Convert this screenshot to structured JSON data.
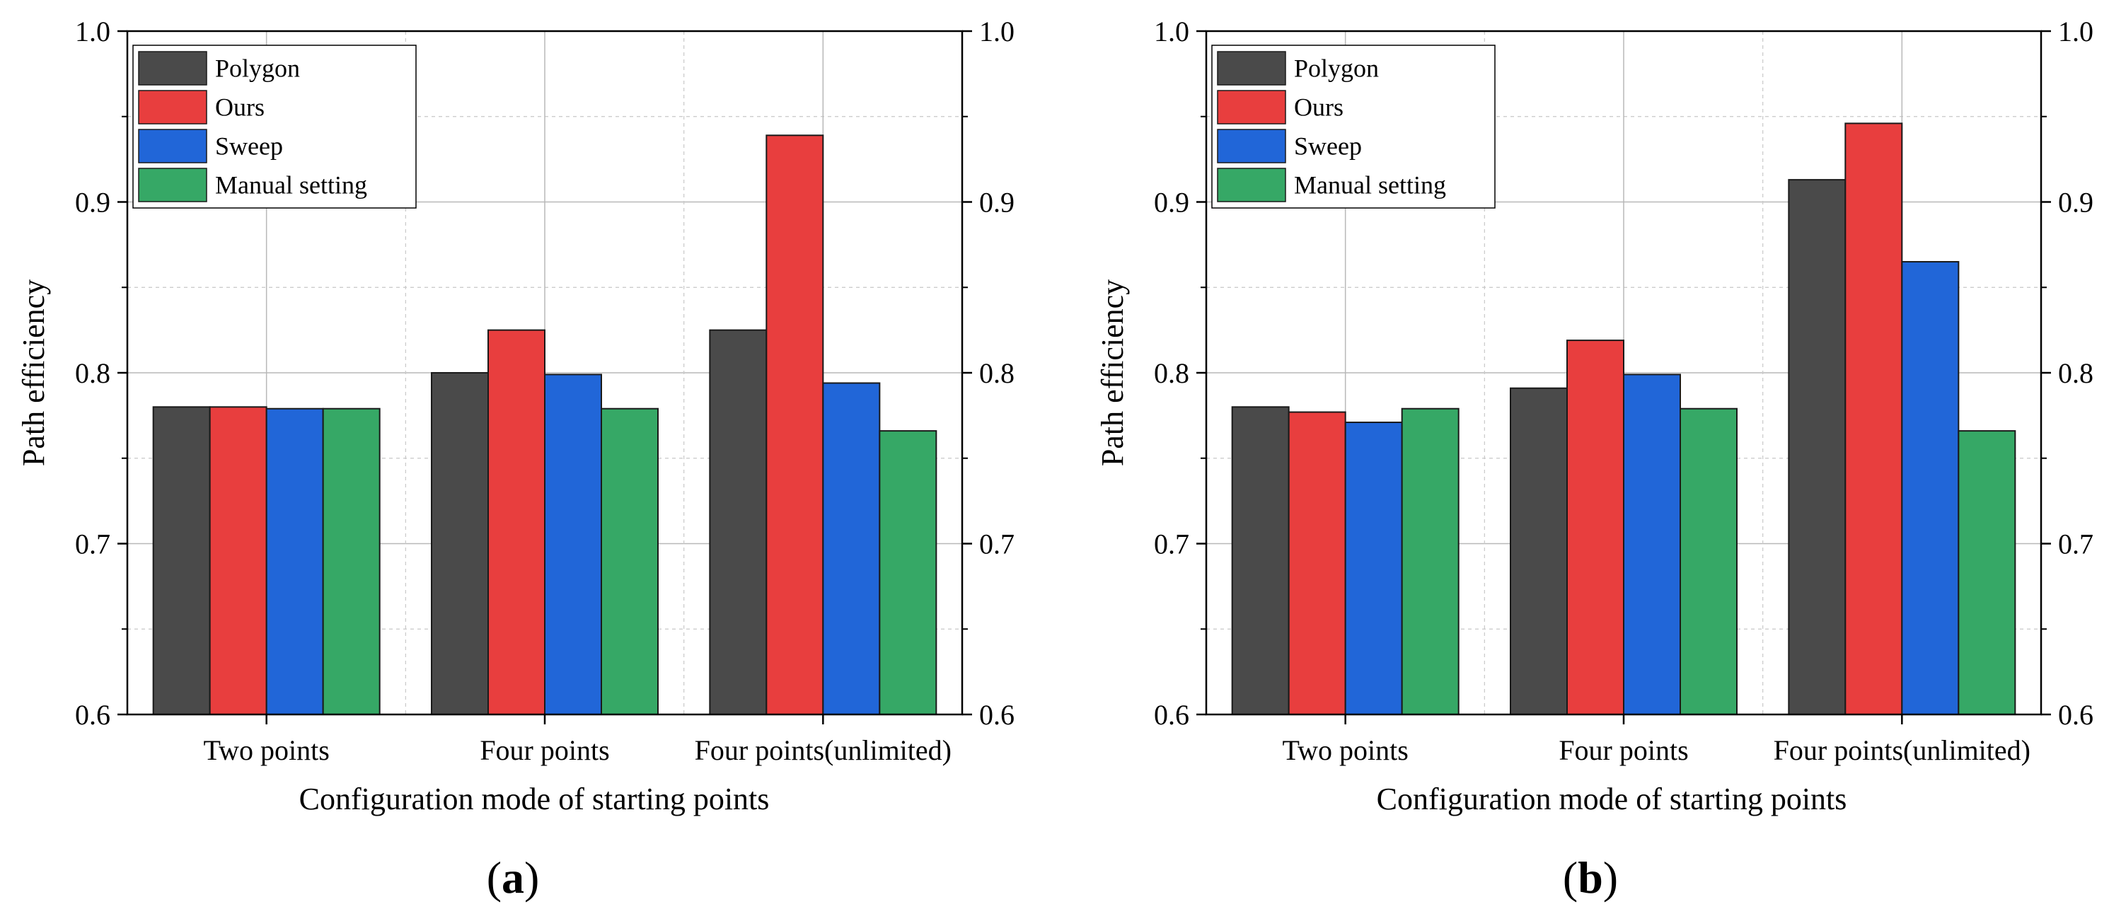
{
  "figure": {
    "panels": [
      {
        "label_open": "(",
        "label_letter": "a",
        "label_close": ")"
      },
      {
        "label_open": "(",
        "label_letter": "b",
        "label_close": ")"
      }
    ]
  },
  "chart_data": [
    {
      "type": "bar",
      "panel": "a",
      "title": "",
      "xlabel": "Configuration mode of starting points",
      "ylabel": "Path efficiency",
      "ylim": [
        0.6,
        1.0
      ],
      "yticks": [
        "0.6",
        "0.7",
        "0.8",
        "0.9",
        "1.0"
      ],
      "right_axis_mirrored": true,
      "grid": true,
      "legend_position": "top-left",
      "categories": [
        "Two points",
        "Four points",
        "Four points(unlimited)"
      ],
      "series": [
        {
          "name": "Polygon",
          "color": "#4a4a4a",
          "values": [
            0.78,
            0.8,
            0.825
          ]
        },
        {
          "name": "Ours",
          "color": "#e83e3e",
          "values": [
            0.78,
            0.825,
            0.939
          ]
        },
        {
          "name": "Sweep",
          "color": "#2166d8",
          "values": [
            0.779,
            0.799,
            0.794
          ]
        },
        {
          "name": "Manual setting",
          "color": "#36a866",
          "values": [
            0.779,
            0.779,
            0.766
          ]
        }
      ]
    },
    {
      "type": "bar",
      "panel": "b",
      "title": "",
      "xlabel": "Configuration mode of starting points",
      "ylabel": "Path efficiency",
      "ylim": [
        0.6,
        1.0
      ],
      "yticks": [
        "0.6",
        "0.7",
        "0.8",
        "0.9",
        "1.0"
      ],
      "right_axis_mirrored": true,
      "grid": true,
      "legend_position": "top-left",
      "categories": [
        "Two points",
        "Four points",
        "Four points(unlimited)"
      ],
      "series": [
        {
          "name": "Polygon",
          "color": "#4a4a4a",
          "values": [
            0.78,
            0.791,
            0.913
          ]
        },
        {
          "name": "Ours",
          "color": "#e83e3e",
          "values": [
            0.777,
            0.819,
            0.946
          ]
        },
        {
          "name": "Sweep",
          "color": "#2166d8",
          "values": [
            0.771,
            0.799,
            0.865
          ]
        },
        {
          "name": "Manual setting",
          "color": "#36a866",
          "values": [
            0.779,
            0.779,
            0.766
          ]
        }
      ]
    }
  ]
}
